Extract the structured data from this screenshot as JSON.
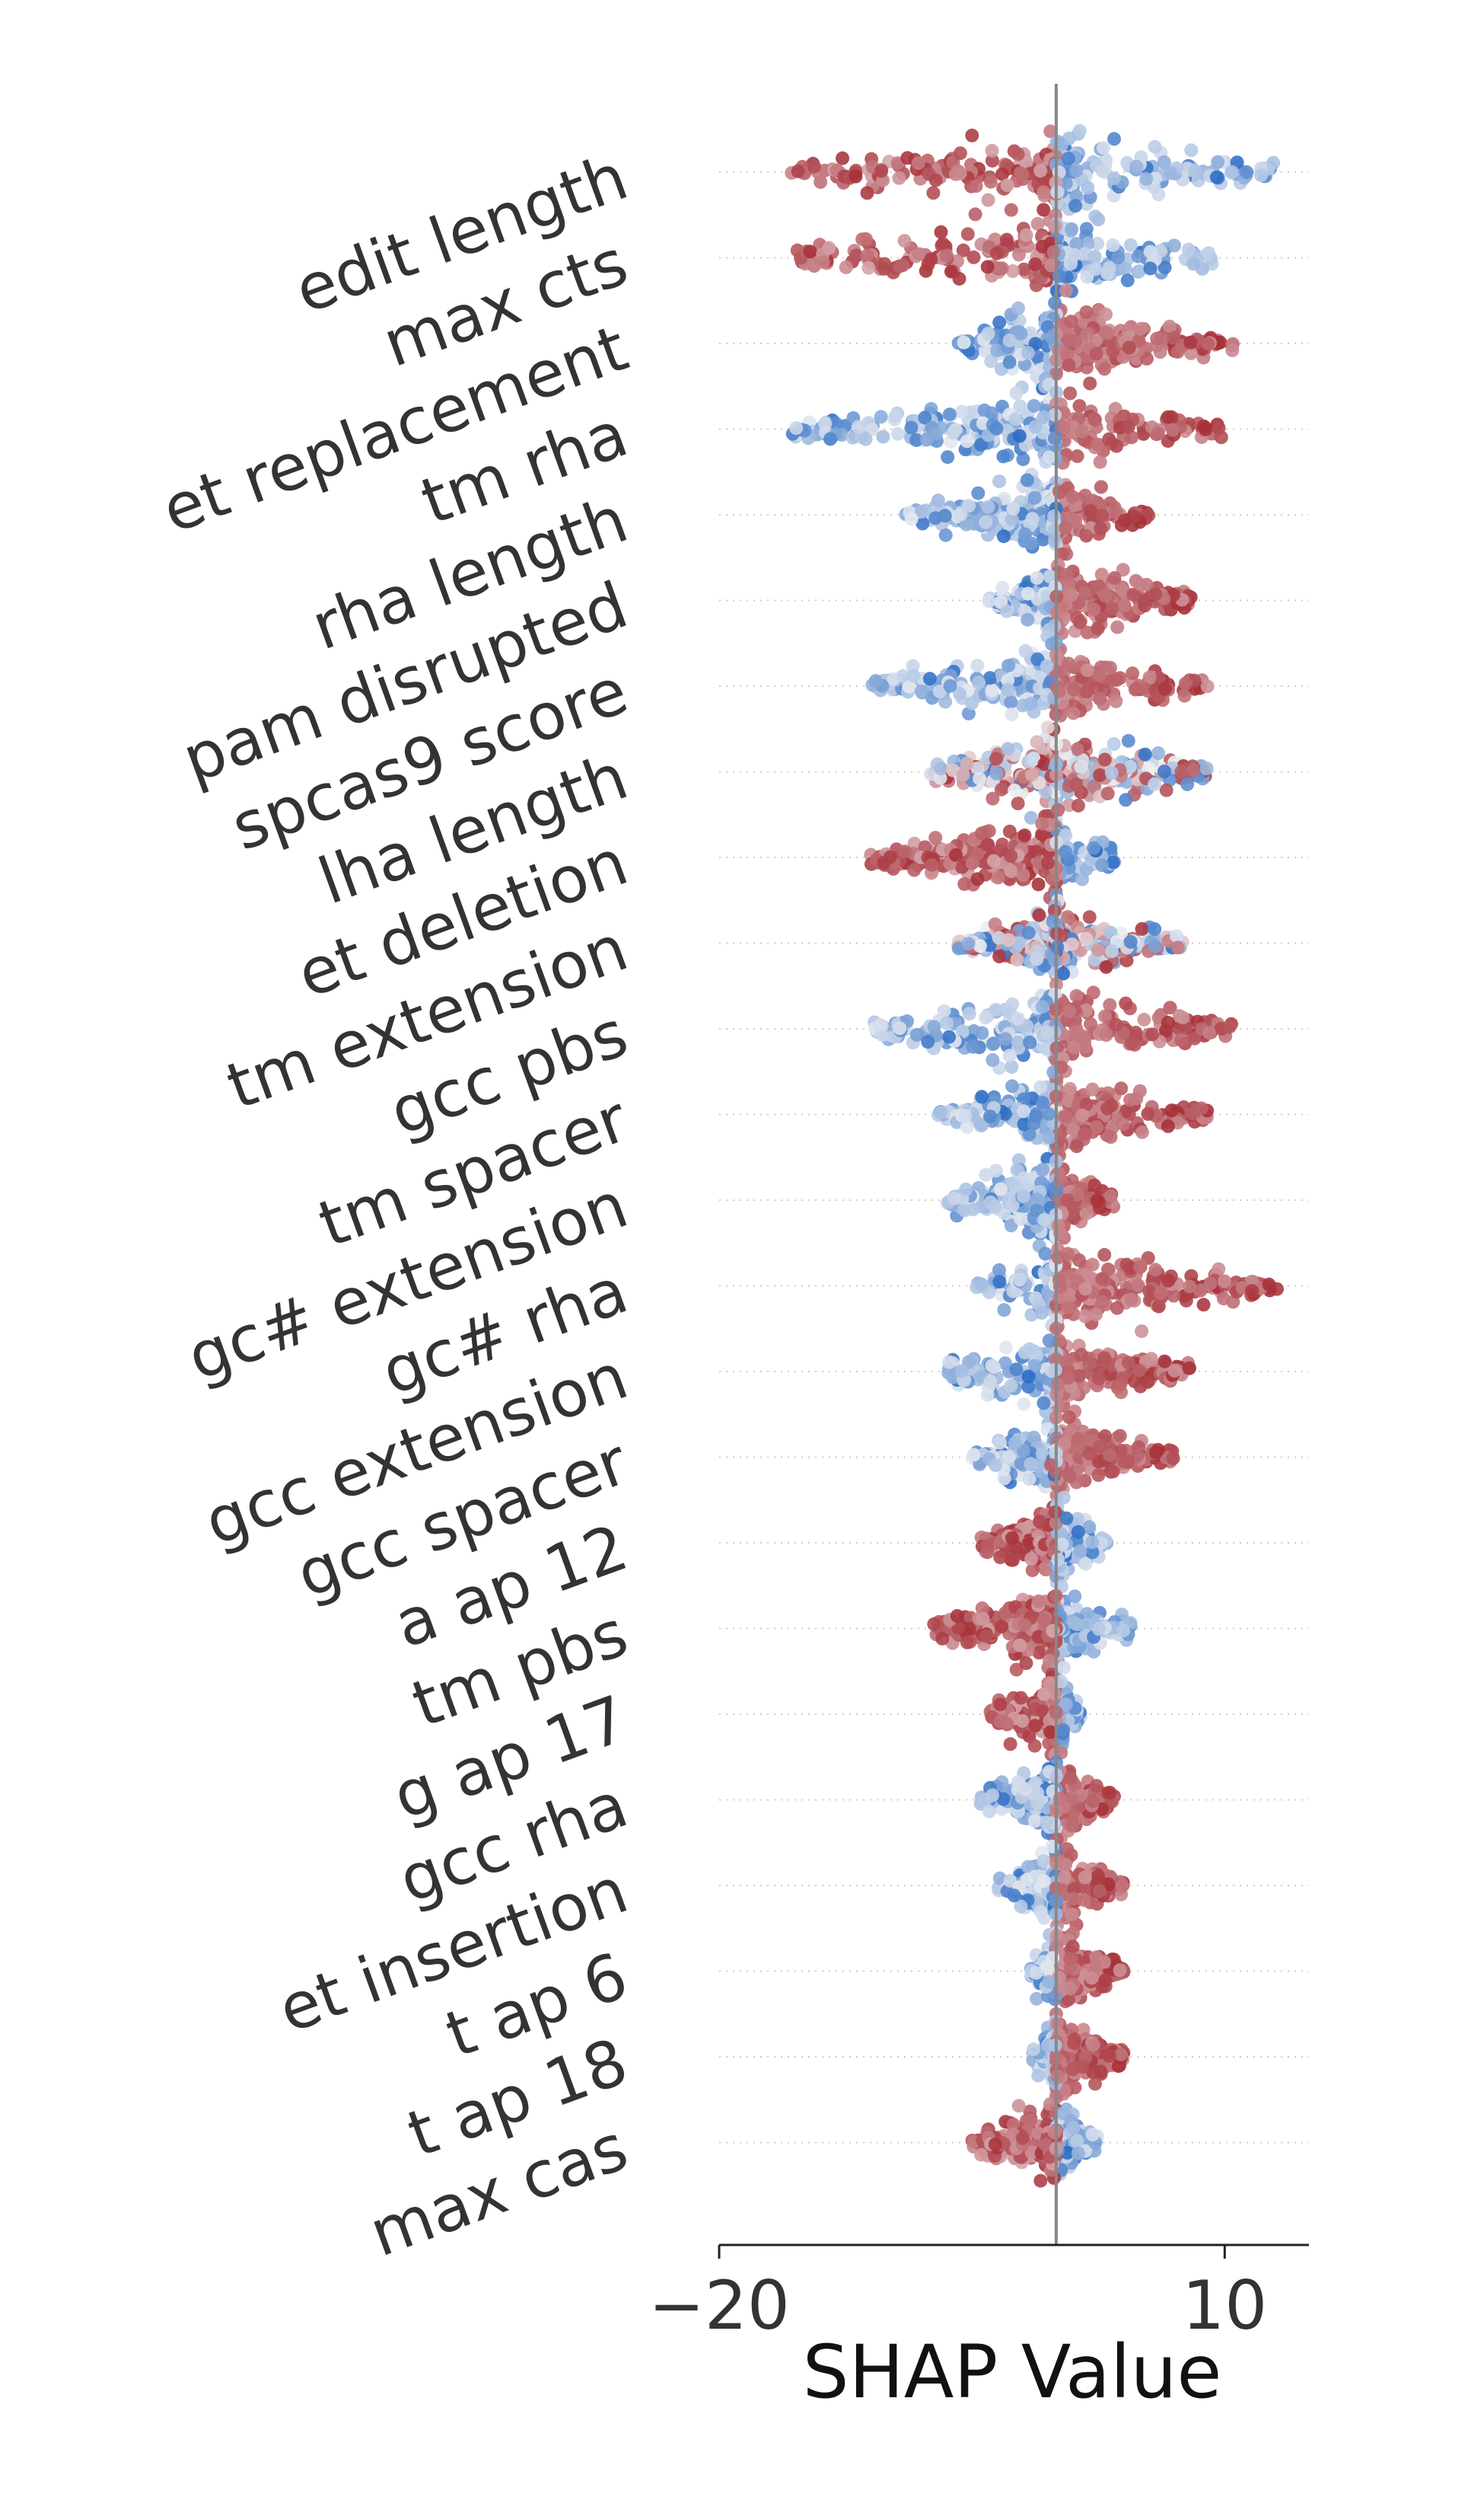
{
  "chart_data": {
    "type": "scatter",
    "subtype": "shap-beeswarm",
    "title": "",
    "xlabel": "SHAP Value",
    "ylabel": "",
    "xlim": [
      -20,
      15
    ],
    "xticks": [
      -20,
      10
    ],
    "xtick_labels": [
      "−20",
      "10"
    ],
    "zero_line": 0,
    "grid": false,
    "legend": "none",
    "colors": {
      "low": "#2266c2",
      "mid": "#f0f0f2",
      "high": "#a8323a",
      "axis": "#222222",
      "zero": "#888888"
    },
    "features": [
      {
        "name": "edit length",
        "min": -16.0,
        "max": 13.6,
        "high_side": "negative"
      },
      {
        "name": "max cts",
        "min": -15.5,
        "max": 9.5,
        "high_side": "negative"
      },
      {
        "name": "et replacement",
        "min": -6.0,
        "max": 10.5,
        "high_side": "positive"
      },
      {
        "name": "tm rha",
        "min": -16.0,
        "max": 10.0,
        "high_side": "positive"
      },
      {
        "name": "rha length",
        "min": -9.0,
        "max": 5.5,
        "high_side": "positive"
      },
      {
        "name": "pam disrupted",
        "min": -4.0,
        "max": 8.0,
        "high_side": "positive"
      },
      {
        "name": "spcas9 score",
        "min": -11.0,
        "max": 9.0,
        "high_side": "positive"
      },
      {
        "name": "lha length",
        "min": -7.5,
        "max": 9.0,
        "high_side": "mixed"
      },
      {
        "name": "et deletion",
        "min": -11.0,
        "max": 3.5,
        "high_side": "negative"
      },
      {
        "name": "tm extension",
        "min": -6.0,
        "max": 7.5,
        "high_side": "mixed"
      },
      {
        "name": "gcc pbs",
        "min": -11.0,
        "max": 10.5,
        "high_side": "positive"
      },
      {
        "name": "tm spacer",
        "min": -7.0,
        "max": 9.0,
        "high_side": "positive"
      },
      {
        "name": "gc# extension",
        "min": -6.5,
        "max": 3.5,
        "high_side": "positive"
      },
      {
        "name": "gc# rha",
        "min": -5.0,
        "max": 13.5,
        "high_side": "positive"
      },
      {
        "name": "gcc extension",
        "min": -6.5,
        "max": 8.0,
        "high_side": "positive"
      },
      {
        "name": "gcc spacer",
        "min": -5.0,
        "max": 7.0,
        "high_side": "positive"
      },
      {
        "name": "a ap 12",
        "min": -4.5,
        "max": 3.0,
        "high_side": "negative"
      },
      {
        "name": "tm pbs",
        "min": -8.0,
        "max": 4.5,
        "high_side": "negative"
      },
      {
        "name": "g ap 17",
        "min": -4.0,
        "max": 1.5,
        "high_side": "negative"
      },
      {
        "name": "gcc rha",
        "min": -4.5,
        "max": 3.5,
        "high_side": "positive"
      },
      {
        "name": "et insertion",
        "min": -3.5,
        "max": 4.0,
        "high_side": "positive"
      },
      {
        "name": "t ap 6",
        "min": -1.5,
        "max": 4.0,
        "high_side": "positive"
      },
      {
        "name": "t ap 18",
        "min": -1.5,
        "max": 4.0,
        "high_side": "positive"
      },
      {
        "name": "max cas",
        "min": -5.0,
        "max": 2.5,
        "high_side": "negative"
      }
    ]
  }
}
